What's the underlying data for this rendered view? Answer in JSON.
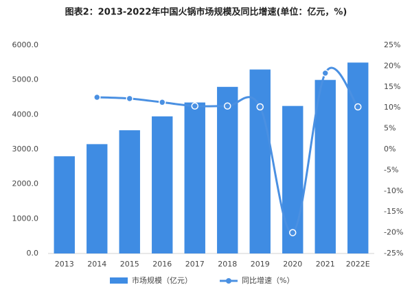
{
  "chart_data": {
    "type": "bar-line",
    "title": "图表2：2013-2022年中国火锅市场规模及同比增速(单位：亿元，%)",
    "categories": [
      "2013",
      "2014",
      "2015",
      "2016",
      "2017",
      "2018",
      "2019",
      "2020",
      "2021",
      "2022E"
    ],
    "series": [
      {
        "name": "市场规模（亿元）",
        "type": "bar",
        "color": "#3f8ce3",
        "values": [
          2800,
          3150,
          3550,
          3950,
          4350,
          4800,
          5300,
          4250,
          5000,
          5500
        ]
      },
      {
        "name": "同比增速（%）",
        "type": "line",
        "axis": "y2",
        "color": "#4a90e2",
        "values": [
          null,
          12.5,
          12.2,
          11.3,
          10.4,
          10.4,
          10.2,
          -20,
          18.3,
          10.2
        ]
      }
    ],
    "ylim": [
      0,
      6000
    ],
    "yticks": [
      {
        "value": 0,
        "label": "0.0"
      },
      {
        "value": 1000,
        "label": "1000.0"
      },
      {
        "value": 2000,
        "label": "2000.0"
      },
      {
        "value": 3000,
        "label": "3000.0"
      },
      {
        "value": 4000,
        "label": "4000.0"
      },
      {
        "value": 5000,
        "label": "5000.0"
      },
      {
        "value": 6000,
        "label": "6000.0"
      }
    ],
    "y2lim": [
      -25,
      25
    ],
    "y2ticks": [
      {
        "value": -25,
        "label": "-25%"
      },
      {
        "value": -20,
        "label": "-20%"
      },
      {
        "value": -15,
        "label": "-15%"
      },
      {
        "value": -10,
        "label": "-10%"
      },
      {
        "value": -5,
        "label": "-5%"
      },
      {
        "value": 0,
        "label": "0%"
      },
      {
        "value": 5,
        "label": "5%"
      },
      {
        "value": 10,
        "label": "10%"
      },
      {
        "value": 15,
        "label": "15%"
      },
      {
        "value": 20,
        "label": "20%"
      },
      {
        "value": 25,
        "label": "25%"
      }
    ],
    "grid": false
  }
}
